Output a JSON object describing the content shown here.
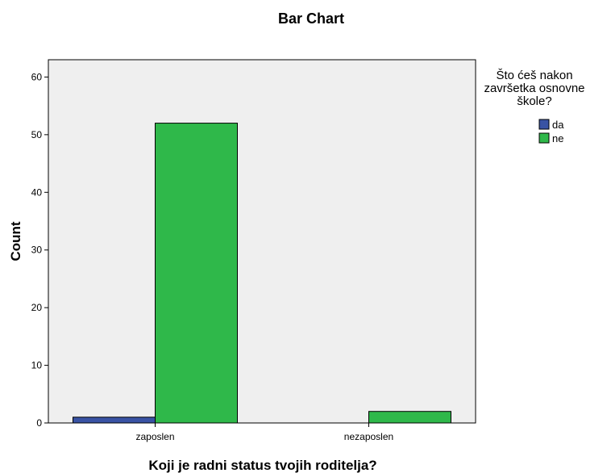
{
  "chart_data": {
    "type": "bar",
    "title": "Bar Chart",
    "xlabel": "Koji je radni status tvojih roditelja?",
    "ylabel": "Count",
    "categories": [
      "zaposlen",
      "nezaposlen"
    ],
    "series": [
      {
        "name": "da",
        "values": [
          1,
          0
        ]
      },
      {
        "name": "ne",
        "values": [
          52,
          2
        ]
      }
    ],
    "ylim": [
      0,
      63
    ],
    "yticks": [
      0,
      10,
      20,
      30,
      40,
      50,
      60
    ],
    "grid": false,
    "legend": {
      "title_lines": [
        "Što ćeš nakon",
        "završetka osnovne",
        "škole?"
      ],
      "placement": "right"
    },
    "colors": {
      "da": "#3953a4",
      "ne": "#2fb84a",
      "plot_background": "#efefef"
    }
  }
}
